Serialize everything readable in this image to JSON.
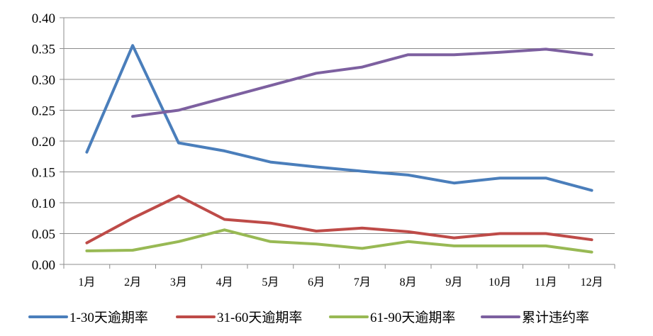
{
  "chart_data": {
    "type": "line",
    "categories": [
      "1月",
      "2月",
      "3月",
      "4月",
      "5月",
      "6月",
      "7月",
      "8月",
      "9月",
      "10月",
      "11月",
      "12月"
    ],
    "ylim": [
      0,
      0.4
    ],
    "yticks": [
      "0.00",
      "0.05",
      "0.10",
      "0.15",
      "0.20",
      "0.25",
      "0.30",
      "0.35",
      "0.40"
    ],
    "grid": true,
    "legend_position": "bottom",
    "series": [
      {
        "name": "1-30天逾期率",
        "color": "#4a7ebb",
        "values": [
          0.182,
          0.355,
          0.197,
          0.184,
          0.166,
          0.158,
          0.151,
          0.145,
          0.132,
          0.14,
          0.14,
          0.12
        ]
      },
      {
        "name": "31-60天逾期率",
        "color": "#be4b48",
        "values": [
          0.035,
          0.075,
          0.111,
          0.073,
          0.067,
          0.054,
          0.059,
          0.053,
          0.043,
          0.05,
          0.05,
          0.04
        ]
      },
      {
        "name": "61-90天逾期率",
        "color": "#98b954",
        "values": [
          0.022,
          0.023,
          0.037,
          0.056,
          0.037,
          0.033,
          0.026,
          0.037,
          0.03,
          0.03,
          0.03,
          0.02
        ]
      },
      {
        "name": "累计违约率",
        "color": "#7d60a0",
        "values": [
          null,
          0.24,
          0.25,
          0.27,
          0.29,
          0.31,
          0.32,
          0.34,
          0.34,
          0.344,
          0.349,
          0.34
        ]
      }
    ]
  }
}
